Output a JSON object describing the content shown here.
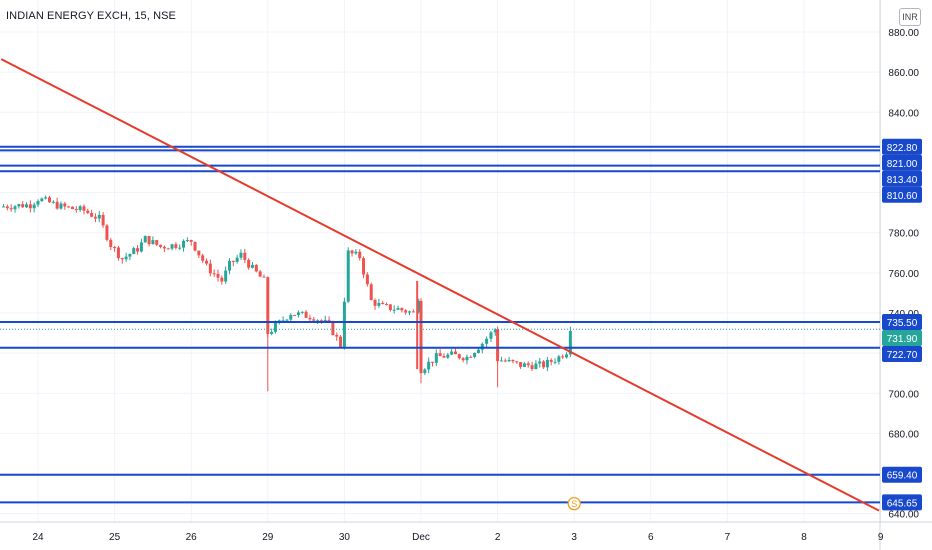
{
  "header": {
    "symbol_title": "INDIAN ENERGY EXCH, 15, NSE",
    "currency": "INR"
  },
  "colors": {
    "level_line": "#1848cc",
    "trend_line": "#e53b2c",
    "up_candle": "#26a69a",
    "down_candle": "#ef5350",
    "current_price": "#26a69a",
    "grid": "#f0f3fa",
    "dividend_marker": "#f59d1a"
  },
  "chart_data": {
    "type": "candlestick",
    "ylim": [
      640,
      885
    ],
    "y_ticks": [
      640,
      660,
      680,
      700,
      720,
      740,
      760,
      780,
      800,
      820,
      840,
      860,
      880
    ],
    "x_ticks": [
      {
        "label": "24",
        "x": 0
      },
      {
        "label": "25",
        "x": 1
      },
      {
        "label": "26",
        "x": 2
      },
      {
        "label": "29",
        "x": 3
      },
      {
        "label": "30",
        "x": 4
      },
      {
        "label": "Dec",
        "x": 5
      },
      {
        "label": "2",
        "x": 6
      },
      {
        "label": "3",
        "x": 7
      },
      {
        "label": "6",
        "x": 8
      },
      {
        "label": "7",
        "x": 9
      },
      {
        "label": "8",
        "x": 10
      },
      {
        "label": "9",
        "x": 11
      }
    ],
    "horizontal_levels": [
      822.8,
      821.0,
      813.4,
      810.6,
      735.5,
      722.7,
      659.4,
      645.65
    ],
    "price_tags": [
      {
        "label": "822.80",
        "value": 822.8
      },
      {
        "label": "821.00",
        "value": 821.0
      },
      {
        "label": "813.40",
        "value": 813.4
      },
      {
        "label": "810.60",
        "value": 810.6
      },
      {
        "label": "735.50",
        "value": 735.5
      },
      {
        "label": "731.90",
        "value": 731.9,
        "current": true
      },
      {
        "label": "722.70",
        "value": 722.7
      },
      {
        "label": "659.40",
        "value": 659.4
      },
      {
        "label": "645.65",
        "value": 645.65
      }
    ],
    "current_price": 731.9,
    "trendline": {
      "start": {
        "x": -0.48,
        "y": 866.5
      },
      "end": {
        "x": 10.98,
        "y": 641.5
      }
    },
    "dividend_marker": {
      "label": "S",
      "x": 7.0,
      "y": 646
    },
    "series": [
      {
        "name": "INDIAN ENERGY EXCH, 15, NSE",
        "anchors": [
          {
            "x": -0.5,
            "y": 793
          },
          {
            "x": -0.1,
            "y": 794
          },
          {
            "x": 0.0,
            "y": 797
          },
          {
            "x": 0.3,
            "y": 793
          },
          {
            "x": 0.6,
            "y": 791
          },
          {
            "x": 0.8,
            "y": 787
          },
          {
            "x": 0.95,
            "y": 774
          },
          {
            "x": 1.1,
            "y": 767
          },
          {
            "x": 1.3,
            "y": 772
          },
          {
            "x": 1.4,
            "y": 777
          },
          {
            "x": 1.6,
            "y": 773
          },
          {
            "x": 1.8,
            "y": 774
          },
          {
            "x": 2.0,
            "y": 776
          },
          {
            "x": 2.2,
            "y": 763
          },
          {
            "x": 2.4,
            "y": 756
          },
          {
            "x": 2.5,
            "y": 764
          },
          {
            "x": 2.65,
            "y": 769
          },
          {
            "x": 2.8,
            "y": 762
          },
          {
            "x": 2.95,
            "y": 756
          },
          {
            "x": 3.0,
            "y": 730
          },
          {
            "x": 3.3,
            "y": 740
          },
          {
            "x": 3.6,
            "y": 738
          },
          {
            "x": 3.8,
            "y": 734
          },
          {
            "x": 3.95,
            "y": 724
          },
          {
            "x": 4.05,
            "y": 770
          },
          {
            "x": 4.2,
            "y": 768
          },
          {
            "x": 4.35,
            "y": 746
          },
          {
            "x": 4.5,
            "y": 743
          },
          {
            "x": 4.7,
            "y": 742
          },
          {
            "x": 4.9,
            "y": 740
          },
          {
            "x": 4.97,
            "y": 748
          },
          {
            "x": 5.0,
            "y": 712
          },
          {
            "x": 5.2,
            "y": 718
          },
          {
            "x": 5.4,
            "y": 719
          },
          {
            "x": 5.6,
            "y": 718
          },
          {
            "x": 5.8,
            "y": 725
          },
          {
            "x": 5.97,
            "y": 732
          },
          {
            "x": 6.0,
            "y": 717
          },
          {
            "x": 6.3,
            "y": 714
          },
          {
            "x": 6.6,
            "y": 714
          },
          {
            "x": 6.8,
            "y": 718
          },
          {
            "x": 6.9,
            "y": 721
          },
          {
            "x": 6.95,
            "y": 733
          }
        ]
      }
    ]
  }
}
